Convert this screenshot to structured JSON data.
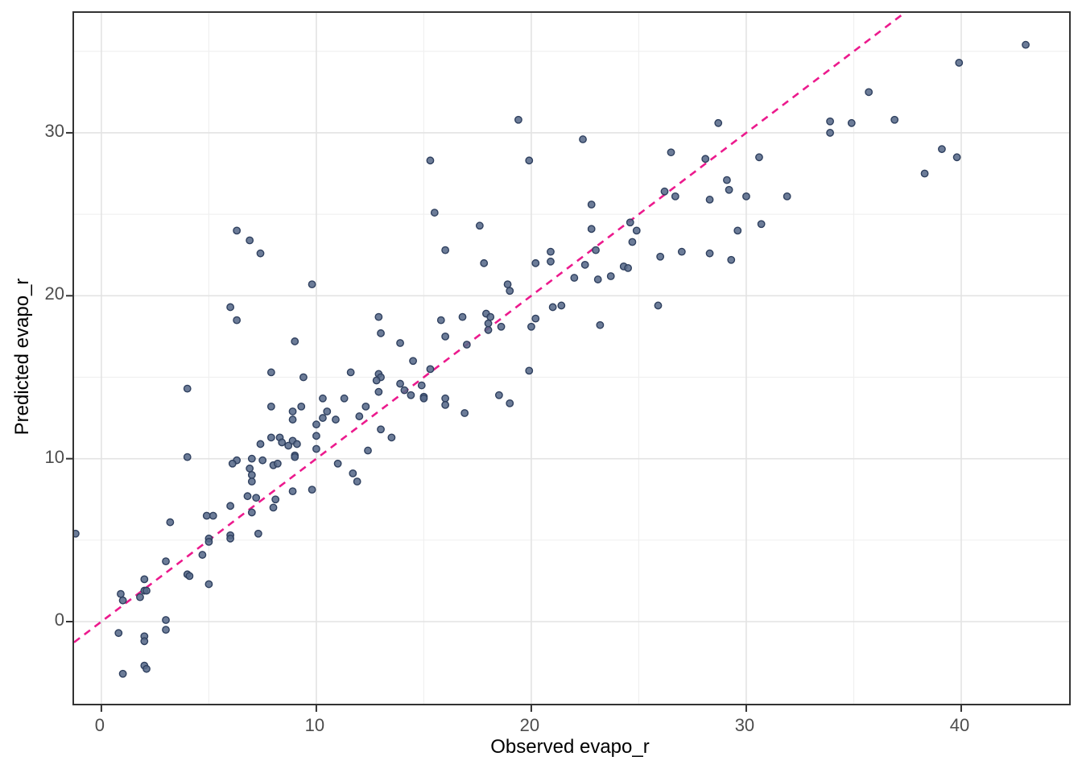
{
  "axis_titles": {
    "x": "Observed evapo_r",
    "y": "Predicted evapo_r"
  },
  "colors": {
    "background": "#ffffff",
    "panel_border": "#333333",
    "grid_major": "#e3e3e3",
    "grid_minor": "#f0f0f0",
    "tick_mark": "#333333",
    "tick_label": "#4d4d4d",
    "point_fill": "#586A8A",
    "point_stroke": "#2F405F",
    "reference_line": "#EC1A8D"
  },
  "chart_data": {
    "type": "scatter",
    "title": "",
    "xlabel": "Observed evapo_r",
    "ylabel": "Predicted evapo_r",
    "xlim": [
      -1.27,
      45.02
    ],
    "ylim": [
      -5.04,
      37.36
    ],
    "x_major_ticks": [
      0,
      10,
      20,
      30,
      40
    ],
    "x_minor_ticks": [
      5,
      15,
      25,
      35
    ],
    "y_major_ticks": [
      0,
      10,
      20,
      30
    ],
    "y_minor_ticks": [
      5,
      15,
      25,
      35
    ],
    "grid": true,
    "legend": "none",
    "reference_line": {
      "type": "identity",
      "style": "dashed",
      "color": "#EC1A8D",
      "from": [
        -1.27,
        -1.27
      ],
      "to": [
        37.36,
        37.36
      ]
    },
    "points": [
      [
        6.3,
        24.0
      ],
      [
        6.9,
        23.4
      ],
      [
        7.4,
        22.6
      ],
      [
        9.8,
        20.7
      ],
      [
        6.0,
        19.3
      ],
      [
        6.3,
        18.5
      ],
      [
        9.0,
        17.2
      ],
      [
        19.4,
        30.8
      ],
      [
        28.7,
        30.6
      ],
      [
        22.4,
        29.6
      ],
      [
        26.5,
        28.8
      ],
      [
        15.3,
        28.3
      ],
      [
        19.9,
        28.3
      ],
      [
        28.1,
        28.4
      ],
      [
        29.1,
        27.1
      ],
      [
        29.2,
        26.5
      ],
      [
        26.2,
        26.4
      ],
      [
        26.7,
        26.1
      ],
      [
        28.3,
        25.9
      ],
      [
        22.8,
        25.6
      ],
      [
        15.5,
        25.1
      ],
      [
        17.6,
        24.3
      ],
      [
        24.6,
        24.5
      ],
      [
        24.9,
        24.0
      ],
      [
        22.8,
        24.1
      ],
      [
        30.6,
        28.5
      ],
      [
        30.0,
        26.1
      ],
      [
        31.9,
        26.1
      ],
      [
        29.6,
        24.0
      ],
      [
        30.7,
        24.4
      ],
      [
        43.0,
        35.4
      ],
      [
        39.9,
        34.3
      ],
      [
        35.7,
        32.5
      ],
      [
        33.9,
        30.7
      ],
      [
        36.9,
        30.8
      ],
      [
        34.9,
        30.6
      ],
      [
        33.9,
        30.0
      ],
      [
        39.1,
        29.0
      ],
      [
        39.8,
        28.5
      ],
      [
        38.3,
        27.5
      ],
      [
        16.0,
        22.8
      ],
      [
        24.7,
        23.3
      ],
      [
        17.8,
        22.0
      ],
      [
        20.9,
        22.7
      ],
      [
        20.9,
        22.1
      ],
      [
        20.2,
        22.0
      ],
      [
        23.0,
        22.8
      ],
      [
        22.5,
        21.9
      ],
      [
        24.3,
        21.8
      ],
      [
        24.5,
        21.7
      ],
      [
        23.7,
        21.2
      ],
      [
        22.0,
        21.1
      ],
      [
        23.1,
        21.0
      ],
      [
        26.0,
        22.4
      ],
      [
        27.0,
        22.7
      ],
      [
        28.3,
        22.6
      ],
      [
        29.3,
        22.2
      ],
      [
        25.9,
        19.4
      ],
      [
        18.9,
        20.7
      ],
      [
        19.0,
        20.3
      ],
      [
        21.0,
        19.3
      ],
      [
        21.4,
        19.4
      ],
      [
        23.2,
        18.2
      ],
      [
        15.8,
        18.5
      ],
      [
        16.8,
        18.7
      ],
      [
        17.9,
        18.9
      ],
      [
        18.1,
        18.7
      ],
      [
        18.0,
        18.3
      ],
      [
        18.0,
        17.9
      ],
      [
        18.6,
        18.1
      ],
      [
        20.0,
        18.1
      ],
      [
        20.2,
        18.6
      ],
      [
        16.0,
        17.5
      ],
      [
        17.0,
        17.0
      ],
      [
        14.5,
        16.0
      ],
      [
        15.3,
        15.5
      ],
      [
        19.9,
        15.4
      ],
      [
        14.9,
        14.5
      ],
      [
        14.4,
        13.9
      ],
      [
        15.0,
        13.8
      ],
      [
        15.0,
        13.7
      ],
      [
        16.0,
        13.7
      ],
      [
        16.0,
        13.3
      ],
      [
        18.5,
        13.9
      ],
      [
        19.0,
        13.4
      ],
      [
        16.9,
        12.8
      ],
      [
        12.9,
        18.7
      ],
      [
        13.0,
        17.7
      ],
      [
        13.9,
        17.1
      ],
      [
        7.9,
        15.3
      ],
      [
        9.4,
        15.0
      ],
      [
        4.0,
        14.3
      ],
      [
        11.6,
        15.3
      ],
      [
        12.9,
        15.2
      ],
      [
        13.0,
        15.0
      ],
      [
        12.8,
        14.8
      ],
      [
        13.9,
        14.6
      ],
      [
        14.1,
        14.2
      ],
      [
        12.9,
        14.1
      ],
      [
        10.3,
        13.7
      ],
      [
        11.3,
        13.7
      ],
      [
        7.9,
        13.2
      ],
      [
        9.3,
        13.2
      ],
      [
        8.9,
        12.9
      ],
      [
        8.9,
        12.4
      ],
      [
        10.5,
        12.9
      ],
      [
        10.3,
        12.5
      ],
      [
        10.9,
        12.4
      ],
      [
        10.0,
        12.1
      ],
      [
        10.0,
        11.4
      ],
      [
        12.0,
        12.6
      ],
      [
        12.3,
        13.2
      ],
      [
        13.0,
        11.8
      ],
      [
        13.5,
        11.3
      ],
      [
        7.9,
        11.3
      ],
      [
        8.3,
        11.3
      ],
      [
        8.4,
        11.0
      ],
      [
        8.7,
        10.8
      ],
      [
        8.9,
        11.1
      ],
      [
        9.1,
        10.9
      ],
      [
        9.0,
        10.2
      ],
      [
        9.0,
        10.1
      ],
      [
        7.4,
        10.9
      ],
      [
        6.3,
        9.9
      ],
      [
        6.1,
        9.7
      ],
      [
        7.0,
        10.0
      ],
      [
        7.5,
        9.9
      ],
      [
        8.0,
        9.6
      ],
      [
        8.2,
        9.7
      ],
      [
        10.0,
        10.6
      ],
      [
        11.0,
        9.7
      ],
      [
        12.4,
        10.5
      ],
      [
        4.0,
        10.1
      ],
      [
        7.0,
        9.0
      ],
      [
        7.0,
        8.6
      ],
      [
        6.9,
        9.4
      ],
      [
        11.7,
        9.1
      ],
      [
        11.9,
        8.6
      ],
      [
        6.8,
        7.7
      ],
      [
        7.2,
        7.6
      ],
      [
        6.0,
        7.1
      ],
      [
        8.1,
        7.5
      ],
      [
        8.0,
        7.0
      ],
      [
        8.9,
        8.0
      ],
      [
        9.8,
        8.1
      ],
      [
        7.0,
        6.7
      ],
      [
        3.2,
        6.1
      ],
      [
        4.9,
        6.5
      ],
      [
        5.2,
        6.5
      ],
      [
        6.0,
        5.3
      ],
      [
        6.0,
        5.1
      ],
      [
        7.3,
        5.4
      ],
      [
        5.0,
        5.1
      ],
      [
        5.0,
        4.9
      ],
      [
        4.7,
        4.1
      ],
      [
        -1.2,
        5.4
      ],
      [
        3.0,
        3.7
      ],
      [
        4.0,
        2.9
      ],
      [
        4.1,
        2.8
      ],
      [
        2.0,
        2.6
      ],
      [
        2.0,
        1.9
      ],
      [
        2.1,
        1.9
      ],
      [
        0.9,
        1.7
      ],
      [
        1.0,
        1.3
      ],
      [
        1.8,
        1.5
      ],
      [
        5.0,
        2.3
      ],
      [
        3.0,
        0.1
      ],
      [
        3.0,
        -0.5
      ],
      [
        0.8,
        -0.7
      ],
      [
        2.0,
        -0.9
      ],
      [
        2.0,
        -1.2
      ],
      [
        2.0,
        -2.7
      ],
      [
        2.1,
        -2.9
      ],
      [
        1.0,
        -3.2
      ]
    ],
    "point_style": {
      "radius": 4.2,
      "fill_opacity": 0.88,
      "stroke_width": 1.4
    }
  }
}
